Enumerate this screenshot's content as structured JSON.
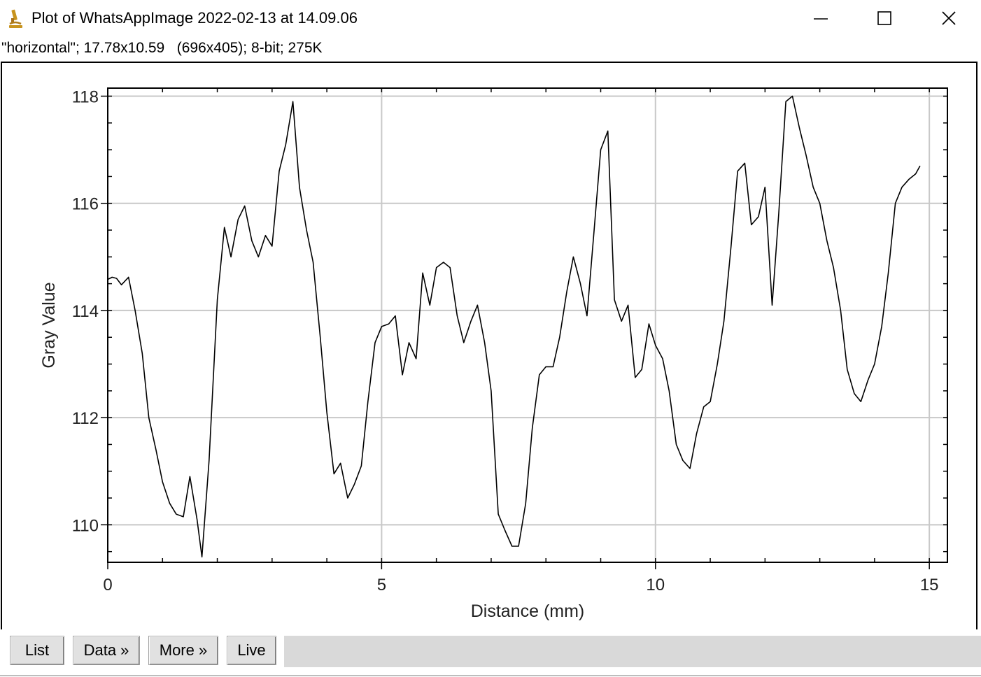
{
  "window": {
    "title": "Plot of WhatsAppImage 2022-02-13 at 14.09.06",
    "icon": "microscope-icon",
    "controls": [
      "minimize-icon",
      "maximize-icon",
      "close-icon"
    ]
  },
  "info_line": "\"horizontal\"; 17.78x10.59   (696x405); 8-bit; 275K",
  "toolbar": {
    "buttons": [
      {
        "label": "List"
      },
      {
        "label": "Data »"
      },
      {
        "label": "More »"
      },
      {
        "label": "Live"
      }
    ]
  },
  "chart_data": {
    "type": "line",
    "title": "",
    "xlabel": "Distance (mm)",
    "ylabel": "Gray Value",
    "xlim": [
      0,
      15.33
    ],
    "ylim": [
      109.3,
      118.15
    ],
    "x_ticks": [
      0,
      5,
      10,
      15
    ],
    "y_ticks": [
      110,
      112,
      114,
      116,
      118
    ],
    "grid": true,
    "series": [
      {
        "line_color": "#000000",
        "points": [
          [
            0.0,
            114.58
          ],
          [
            0.08,
            114.62
          ],
          [
            0.16,
            114.6
          ],
          [
            0.25,
            114.48
          ],
          [
            0.38,
            114.62
          ],
          [
            0.5,
            114.0
          ],
          [
            0.63,
            113.2
          ],
          [
            0.75,
            112.0
          ],
          [
            0.88,
            111.4
          ],
          [
            1.0,
            110.8
          ],
          [
            1.13,
            110.4
          ],
          [
            1.25,
            110.2
          ],
          [
            1.38,
            110.15
          ],
          [
            1.5,
            110.9
          ],
          [
            1.63,
            110.1
          ],
          [
            1.72,
            109.4
          ],
          [
            1.85,
            111.2
          ],
          [
            2.0,
            114.2
          ],
          [
            2.13,
            115.55
          ],
          [
            2.25,
            115.0
          ],
          [
            2.38,
            115.7
          ],
          [
            2.5,
            115.95
          ],
          [
            2.63,
            115.3
          ],
          [
            2.75,
            115.0
          ],
          [
            2.88,
            115.4
          ],
          [
            3.0,
            115.2
          ],
          [
            3.13,
            116.6
          ],
          [
            3.25,
            117.1
          ],
          [
            3.38,
            117.9
          ],
          [
            3.5,
            116.3
          ],
          [
            3.63,
            115.5
          ],
          [
            3.75,
            114.9
          ],
          [
            3.88,
            113.5
          ],
          [
            4.0,
            112.1
          ],
          [
            4.13,
            110.95
          ],
          [
            4.25,
            111.15
          ],
          [
            4.38,
            110.5
          ],
          [
            4.5,
            110.75
          ],
          [
            4.63,
            111.1
          ],
          [
            4.75,
            112.3
          ],
          [
            4.88,
            113.4
          ],
          [
            5.0,
            113.7
          ],
          [
            5.13,
            113.75
          ],
          [
            5.25,
            113.9
          ],
          [
            5.38,
            112.8
          ],
          [
            5.5,
            113.4
          ],
          [
            5.63,
            113.1
          ],
          [
            5.75,
            114.7
          ],
          [
            5.88,
            114.1
          ],
          [
            6.0,
            114.8
          ],
          [
            6.13,
            114.9
          ],
          [
            6.25,
            114.8
          ],
          [
            6.38,
            113.9
          ],
          [
            6.5,
            113.4
          ],
          [
            6.63,
            113.8
          ],
          [
            6.75,
            114.1
          ],
          [
            6.88,
            113.4
          ],
          [
            7.0,
            112.5
          ],
          [
            7.13,
            110.2
          ],
          [
            7.25,
            109.9
          ],
          [
            7.38,
            109.6
          ],
          [
            7.5,
            109.6
          ],
          [
            7.63,
            110.4
          ],
          [
            7.75,
            111.8
          ],
          [
            7.88,
            112.8
          ],
          [
            8.0,
            112.95
          ],
          [
            8.13,
            112.95
          ],
          [
            8.25,
            113.5
          ],
          [
            8.38,
            114.35
          ],
          [
            8.5,
            115.0
          ],
          [
            8.63,
            114.5
          ],
          [
            8.75,
            113.9
          ],
          [
            8.88,
            115.5
          ],
          [
            9.0,
            117.0
          ],
          [
            9.13,
            117.35
          ],
          [
            9.25,
            114.2
          ],
          [
            9.38,
            113.8
          ],
          [
            9.5,
            114.1
          ],
          [
            9.63,
            112.75
          ],
          [
            9.75,
            112.9
          ],
          [
            9.88,
            113.75
          ],
          [
            10.0,
            113.35
          ],
          [
            10.13,
            113.1
          ],
          [
            10.25,
            112.5
          ],
          [
            10.38,
            111.5
          ],
          [
            10.5,
            111.2
          ],
          [
            10.63,
            111.05
          ],
          [
            10.75,
            111.7
          ],
          [
            10.88,
            112.2
          ],
          [
            11.0,
            112.3
          ],
          [
            11.13,
            113.0
          ],
          [
            11.25,
            113.8
          ],
          [
            11.38,
            115.2
          ],
          [
            11.5,
            116.6
          ],
          [
            11.63,
            116.75
          ],
          [
            11.75,
            115.6
          ],
          [
            11.88,
            115.75
          ],
          [
            12.0,
            116.3
          ],
          [
            12.13,
            114.1
          ],
          [
            12.25,
            115.8
          ],
          [
            12.38,
            117.9
          ],
          [
            12.5,
            118.0
          ],
          [
            12.63,
            117.4
          ],
          [
            12.75,
            116.9
          ],
          [
            12.88,
            116.3
          ],
          [
            13.0,
            116.0
          ],
          [
            13.13,
            115.3
          ],
          [
            13.25,
            114.8
          ],
          [
            13.38,
            114.0
          ],
          [
            13.5,
            112.9
          ],
          [
            13.63,
            112.45
          ],
          [
            13.75,
            112.3
          ],
          [
            13.88,
            112.7
          ],
          [
            14.0,
            113.0
          ],
          [
            14.13,
            113.7
          ],
          [
            14.25,
            114.7
          ],
          [
            14.38,
            116.0
          ],
          [
            14.5,
            116.3
          ],
          [
            14.63,
            116.45
          ],
          [
            14.75,
            116.55
          ],
          [
            14.83,
            116.7
          ]
        ]
      }
    ]
  }
}
